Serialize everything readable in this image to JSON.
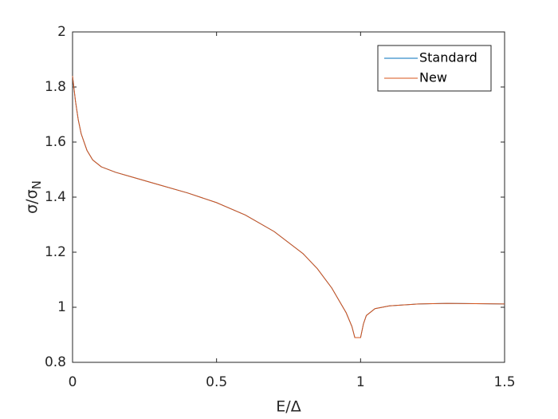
{
  "chart_data": {
    "type": "line",
    "x_label": "E/Δ",
    "y_label": [
      "σ/σ",
      "N"
    ],
    "x": [
      0,
      0.01,
      0.02,
      0.03,
      0.05,
      0.07,
      0.1,
      0.15,
      0.2,
      0.3,
      0.4,
      0.5,
      0.6,
      0.7,
      0.8,
      0.85,
      0.9,
      0.95,
      0.97,
      0.98,
      0.99,
      1.0,
      1.01,
      1.02,
      1.05,
      1.1,
      1.2,
      1.3,
      1.4,
      1.5
    ],
    "series": [
      {
        "name": "Standard",
        "color": "#0072bd",
        "values": [
          1.84,
          1.75,
          1.68,
          1.63,
          1.57,
          1.535,
          1.51,
          1.49,
          1.475,
          1.445,
          1.415,
          1.38,
          1.335,
          1.275,
          1.195,
          1.14,
          1.07,
          0.98,
          0.93,
          0.89,
          0.89,
          0.89,
          0.94,
          0.97,
          0.995,
          1.005,
          1.012,
          1.014,
          1.013,
          1.012
        ]
      },
      {
        "name": "New",
        "color": "#d95319",
        "values": [
          1.84,
          1.75,
          1.68,
          1.63,
          1.57,
          1.535,
          1.51,
          1.49,
          1.475,
          1.445,
          1.415,
          1.38,
          1.335,
          1.275,
          1.195,
          1.14,
          1.07,
          0.98,
          0.93,
          0.89,
          0.89,
          0.89,
          0.94,
          0.97,
          0.995,
          1.005,
          1.012,
          1.014,
          1.013,
          1.012
        ]
      }
    ],
    "xlim": [
      0,
      1.5
    ],
    "xticks": [
      0,
      0.5,
      1,
      1.5
    ],
    "ylim": [
      0.8,
      2
    ],
    "yticks": [
      0.8,
      1,
      1.2,
      1.4,
      1.6,
      1.8,
      2
    ],
    "legend": "top-right"
  }
}
